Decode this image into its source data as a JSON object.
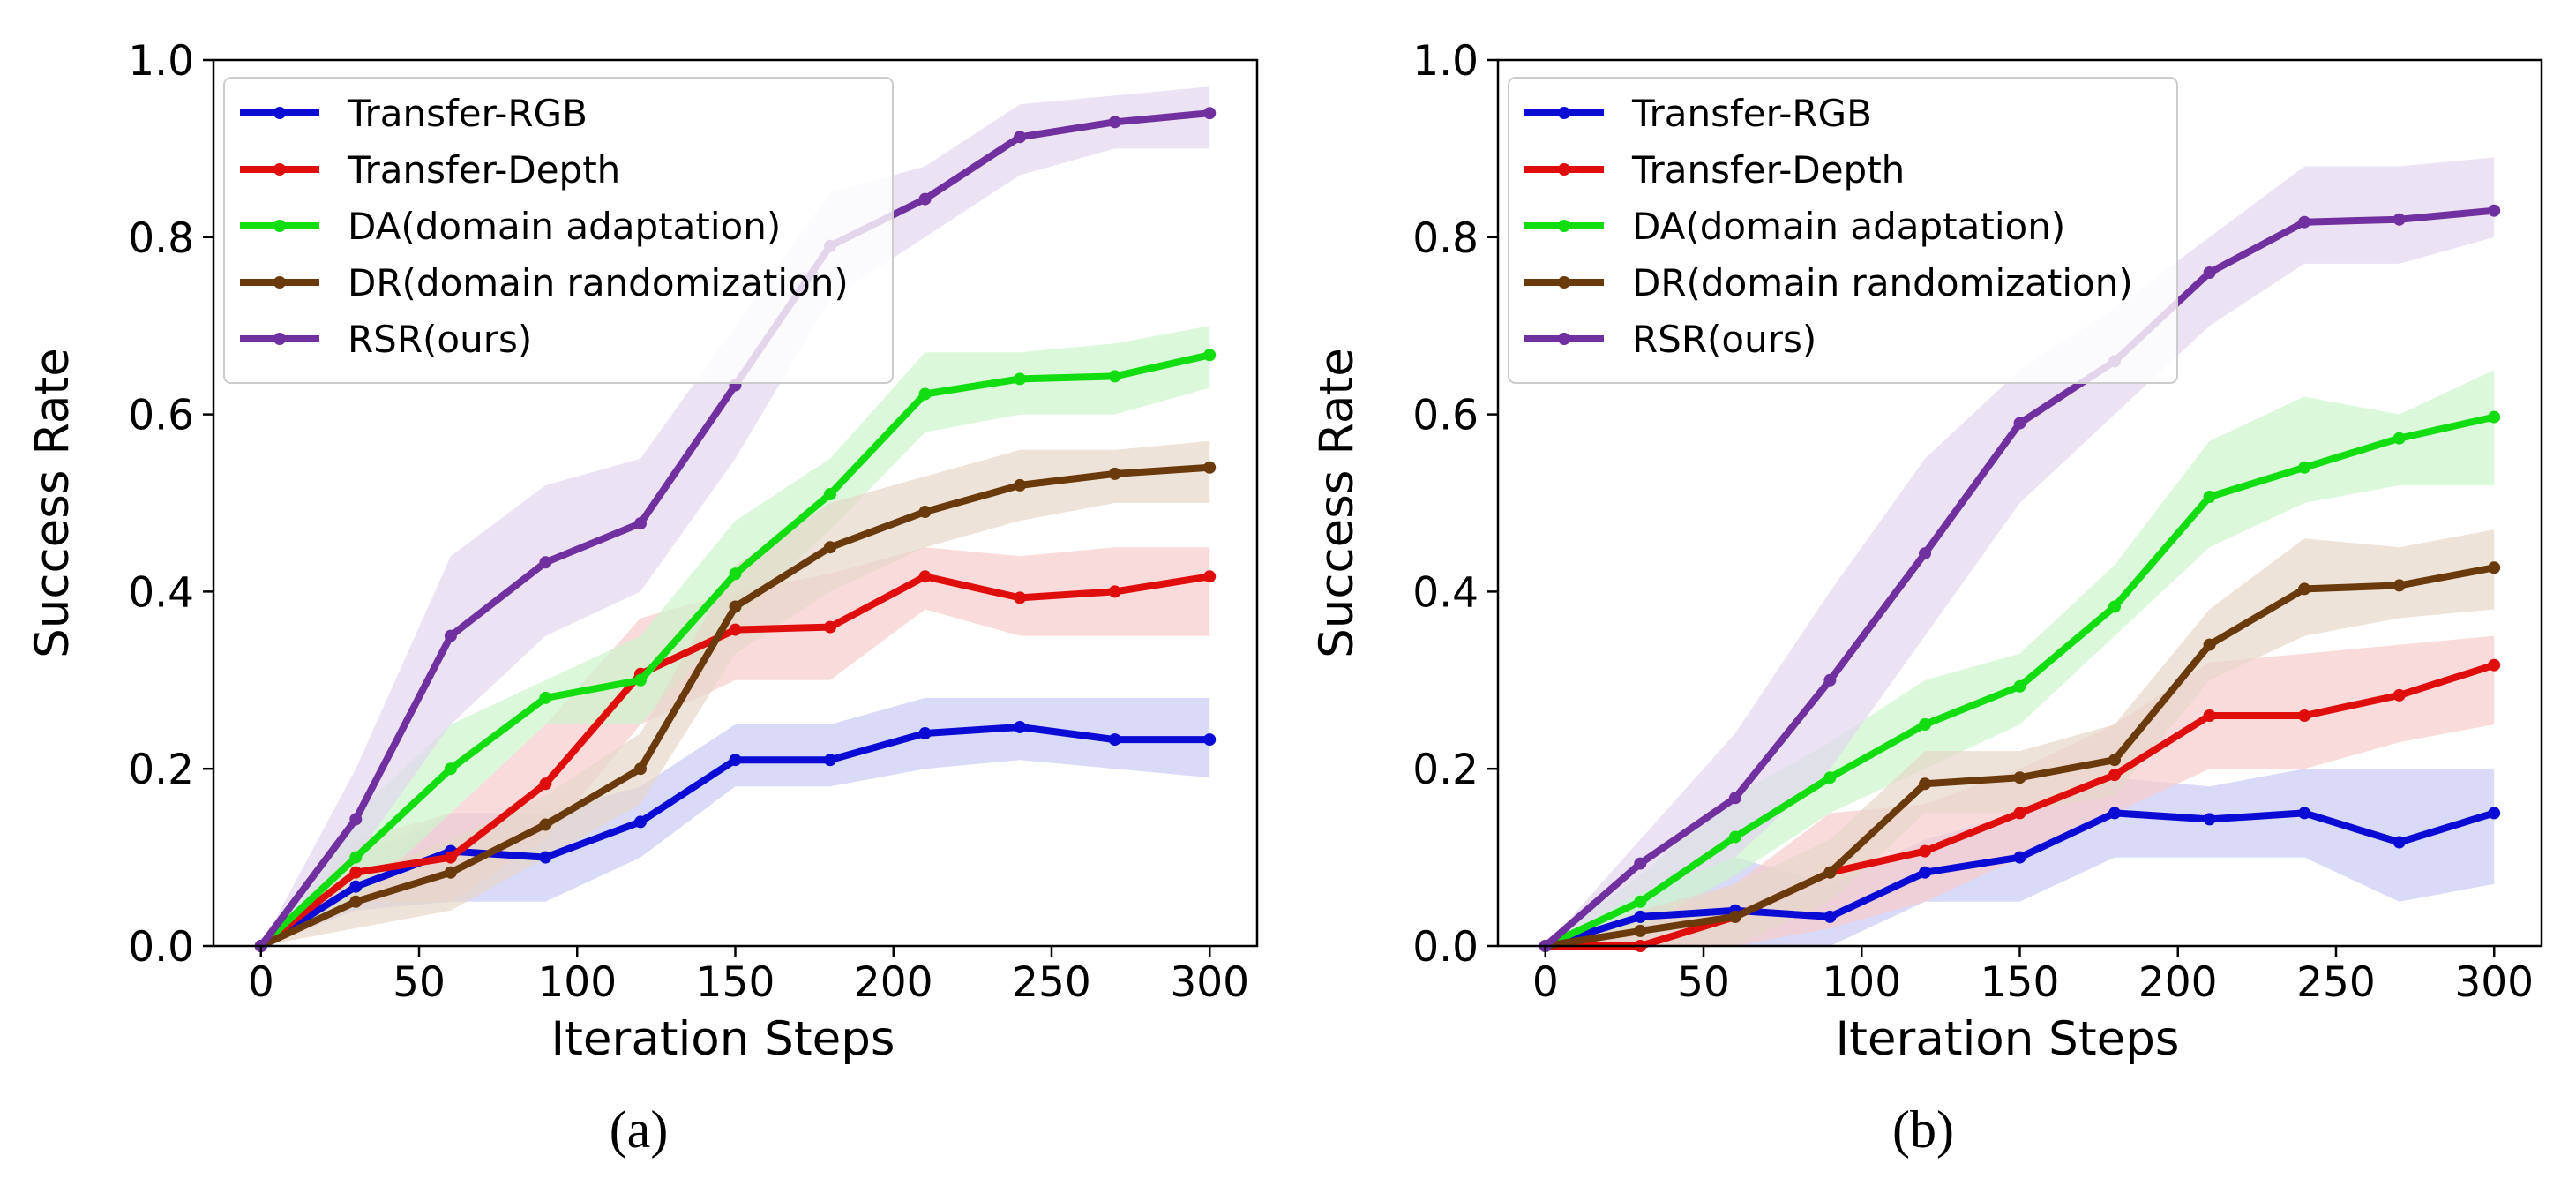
{
  "chart_data": [
    {
      "id": "a",
      "type": "line",
      "caption": "(a)",
      "xlabel": "Iteration  Steps",
      "ylabel": "Success Rate",
      "xlim": [
        -15,
        315
      ],
      "ylim": [
        0,
        1.0
      ],
      "xticks": [
        0,
        50,
        100,
        150,
        200,
        250,
        300
      ],
      "xtick_labels": [
        "0",
        "50",
        "100",
        "150",
        "200",
        "250",
        "300"
      ],
      "yticks": [
        0,
        0.2,
        0.4,
        0.6,
        0.8,
        1.0
      ],
      "ytick_labels": [
        "0.0",
        "0.2",
        "0.4",
        "0.6",
        "0.8",
        "1.0"
      ],
      "grid": false,
      "legend_position": "top-left",
      "x": [
        0,
        30,
        60,
        90,
        120,
        150,
        180,
        210,
        240,
        270,
        300
      ],
      "series": [
        {
          "name": "Transfer-RGB",
          "color": "#0b0bd6",
          "fill": "#c9c9f5",
          "values": [
            0,
            0.067,
            0.107,
            0.1,
            0.14,
            0.21,
            0.21,
            0.24,
            0.247,
            0.233,
            0.233
          ],
          "lower": [
            0,
            0.04,
            0.05,
            0.05,
            0.1,
            0.18,
            0.18,
            0.2,
            0.21,
            0.2,
            0.19
          ],
          "upper": [
            0,
            0.1,
            0.15,
            0.15,
            0.18,
            0.25,
            0.25,
            0.28,
            0.28,
            0.28,
            0.28
          ]
        },
        {
          "name": "Transfer-Depth",
          "color": "#e00d0d",
          "fill": "#f8cccc",
          "values": [
            0,
            0.083,
            0.1,
            0.183,
            0.307,
            0.357,
            0.36,
            0.417,
            0.393,
            0.4,
            0.417
          ],
          "lower": [
            0,
            0.05,
            0.05,
            0.12,
            0.25,
            0.3,
            0.3,
            0.38,
            0.35,
            0.35,
            0.35
          ],
          "upper": [
            0,
            0.12,
            0.15,
            0.25,
            0.37,
            0.4,
            0.42,
            0.45,
            0.44,
            0.45,
            0.45
          ]
        },
        {
          "name": "DA(domain adaptation)",
          "color": "#11dd11",
          "fill": "#ccf5cc",
          "values": [
            0,
            0.1,
            0.2,
            0.28,
            0.3,
            0.42,
            0.51,
            0.623,
            0.64,
            0.643,
            0.667
          ],
          "lower": [
            0,
            0.05,
            0.15,
            0.25,
            0.25,
            0.37,
            0.47,
            0.58,
            0.6,
            0.6,
            0.63
          ],
          "upper": [
            0,
            0.15,
            0.25,
            0.3,
            0.35,
            0.48,
            0.55,
            0.67,
            0.67,
            0.68,
            0.7
          ]
        },
        {
          "name": "DR(domain randomization)",
          "color": "#6b3a0c",
          "fill": "#e6d7c9",
          "values": [
            0,
            0.05,
            0.083,
            0.137,
            0.2,
            0.383,
            0.45,
            0.49,
            0.52,
            0.533,
            0.54
          ],
          "lower": [
            0,
            0.02,
            0.04,
            0.1,
            0.16,
            0.33,
            0.4,
            0.45,
            0.48,
            0.5,
            0.5
          ],
          "upper": [
            0,
            0.08,
            0.12,
            0.17,
            0.24,
            0.43,
            0.5,
            0.53,
            0.56,
            0.56,
            0.57
          ]
        },
        {
          "name": "RSR(ours)",
          "color": "#7030a0",
          "fill": "#e3d7ee",
          "values": [
            0,
            0.143,
            0.35,
            0.433,
            0.477,
            0.633,
            0.79,
            0.843,
            0.913,
            0.93,
            0.94
          ],
          "lower": [
            0,
            0.1,
            0.25,
            0.35,
            0.4,
            0.55,
            0.73,
            0.8,
            0.87,
            0.9,
            0.9
          ],
          "upper": [
            0,
            0.2,
            0.44,
            0.52,
            0.55,
            0.7,
            0.85,
            0.88,
            0.95,
            0.96,
            0.97
          ]
        }
      ]
    },
    {
      "id": "b",
      "type": "line",
      "caption": "(b)",
      "xlabel": "Iteration  Steps",
      "ylabel": "Success Rate",
      "xlim": [
        -15,
        315
      ],
      "ylim": [
        0,
        1.0
      ],
      "xticks": [
        0,
        50,
        100,
        150,
        200,
        250,
        300
      ],
      "xtick_labels": [
        "0",
        "50",
        "100",
        "150",
        "200",
        "250",
        "300"
      ],
      "yticks": [
        0,
        0.2,
        0.4,
        0.6,
        0.8,
        1.0
      ],
      "ytick_labels": [
        "0.0",
        "0.2",
        "0.4",
        "0.6",
        "0.8",
        "1.0"
      ],
      "grid": false,
      "legend_position": "top-left",
      "x": [
        0,
        30,
        60,
        90,
        120,
        150,
        180,
        210,
        240,
        270,
        300
      ],
      "series": [
        {
          "name": "Transfer-RGB",
          "color": "#0b0bd6",
          "fill": "#c9c9f5",
          "values": [
            0,
            0.033,
            0.04,
            0.033,
            0.083,
            0.1,
            0.15,
            0.143,
            0.15,
            0.117,
            0.15
          ],
          "lower": [
            0,
            0,
            0,
            0,
            0.05,
            0.05,
            0.1,
            0.1,
            0.1,
            0.05,
            0.07
          ],
          "upper": [
            0,
            0.06,
            0.1,
            0.07,
            0.12,
            0.15,
            0.19,
            0.18,
            0.2,
            0.2,
            0.2
          ]
        },
        {
          "name": "Transfer-Depth",
          "color": "#e00d0d",
          "fill": "#f8cccc",
          "values": [
            0,
            0,
            0.033,
            0.083,
            0.107,
            0.15,
            0.193,
            0.26,
            0.26,
            0.283,
            0.317
          ],
          "lower": [
            0,
            0,
            0,
            0.02,
            0.05,
            0.1,
            0.15,
            0.2,
            0.2,
            0.23,
            0.25
          ],
          "upper": [
            0,
            0.03,
            0.07,
            0.15,
            0.16,
            0.2,
            0.25,
            0.32,
            0.33,
            0.34,
            0.35
          ]
        },
        {
          "name": "DA(domain adaptation)",
          "color": "#11dd11",
          "fill": "#ccf5cc",
          "values": [
            0,
            0.05,
            0.123,
            0.19,
            0.25,
            0.293,
            0.383,
            0.507,
            0.54,
            0.573,
            0.597
          ],
          "lower": [
            0,
            0.02,
            0.08,
            0.15,
            0.2,
            0.25,
            0.35,
            0.45,
            0.5,
            0.52,
            0.52
          ],
          "upper": [
            0,
            0.08,
            0.17,
            0.23,
            0.3,
            0.33,
            0.43,
            0.57,
            0.62,
            0.6,
            0.65
          ]
        },
        {
          "name": "DR(domain randomization)",
          "color": "#6b3a0c",
          "fill": "#e6d7c9",
          "values": [
            0,
            0.017,
            0.033,
            0.083,
            0.183,
            0.19,
            0.21,
            0.34,
            0.403,
            0.407,
            0.427
          ],
          "lower": [
            0,
            0,
            0,
            0.05,
            0.15,
            0.15,
            0.17,
            0.3,
            0.35,
            0.37,
            0.38
          ],
          "upper": [
            0,
            0.04,
            0.07,
            0.12,
            0.22,
            0.22,
            0.25,
            0.38,
            0.46,
            0.45,
            0.47
          ]
        },
        {
          "name": "RSR(ours)",
          "color": "#7030a0",
          "fill": "#e3d7ee",
          "values": [
            0,
            0.093,
            0.167,
            0.3,
            0.443,
            0.59,
            0.66,
            0.76,
            0.817,
            0.82,
            0.83
          ],
          "lower": [
            0,
            0.06,
            0.1,
            0.2,
            0.35,
            0.5,
            0.6,
            0.7,
            0.77,
            0.77,
            0.8
          ],
          "upper": [
            0,
            0.12,
            0.24,
            0.4,
            0.55,
            0.65,
            0.72,
            0.8,
            0.88,
            0.88,
            0.89
          ]
        }
      ]
    }
  ]
}
